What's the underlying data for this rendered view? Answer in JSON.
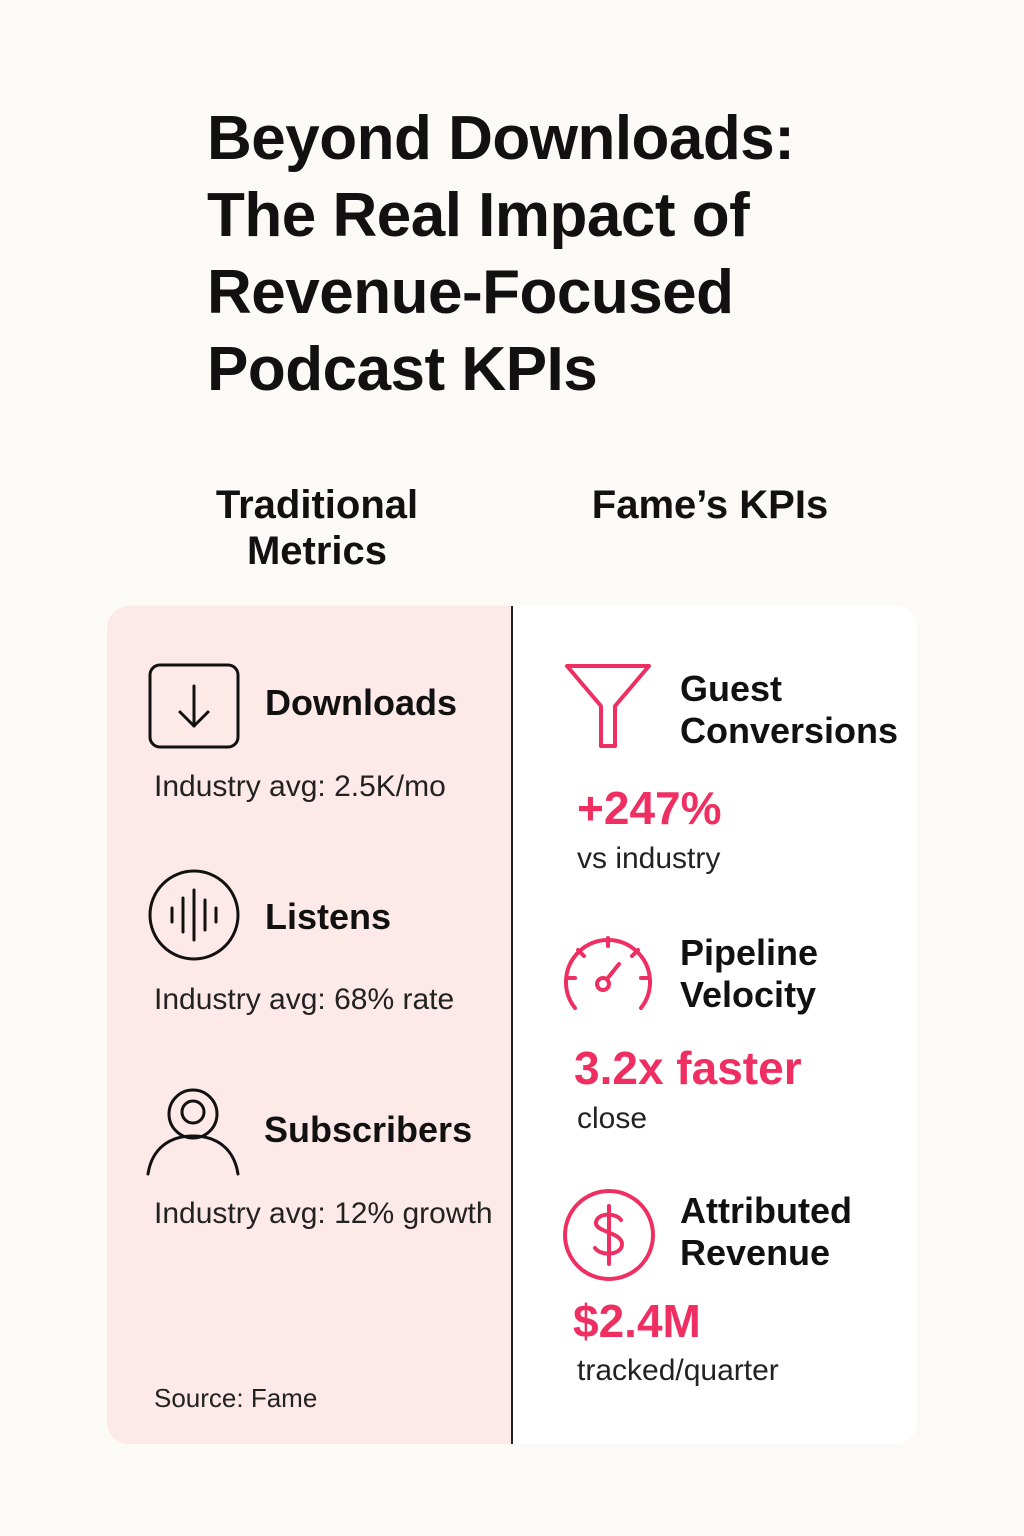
{
  "title_lines": [
    "Beyond Downloads:",
    "The Real Impact of",
    "Revenue-Focused",
    "Podcast KPIs"
  ],
  "columns": {
    "traditional": {
      "heading_lines": [
        "Traditional",
        "Metrics"
      ]
    },
    "fame": {
      "heading_lines": [
        "Fame’s KPIs"
      ]
    }
  },
  "traditional_metrics": [
    {
      "icon": "download-icon",
      "name": "Downloads",
      "detail": "Industry avg: 2.5K/mo"
    },
    {
      "icon": "audio-waveform-icon",
      "name": "Listens",
      "detail": "Industry avg: 68% rate"
    },
    {
      "icon": "user-icon",
      "name": "Subscribers",
      "detail": "Industry avg: 12% growth"
    }
  ],
  "fame_kpis": [
    {
      "icon": "funnel-icon",
      "name_lines": [
        "Guest",
        "Conversions"
      ],
      "value": "+247%",
      "caption": "vs industry"
    },
    {
      "icon": "speedometer-icon",
      "name_lines": [
        "Pipeline",
        "Velocity"
      ],
      "value": "3.2x faster",
      "caption": "close"
    },
    {
      "icon": "dollar-icon",
      "name_lines": [
        "Attributed",
        "Revenue"
      ],
      "value": "$2.4M",
      "caption": "tracked/quarter"
    }
  ],
  "source": "Source: Fame",
  "colors": {
    "background": "#fcfaf6",
    "left_panel": "#fde9e8",
    "right_panel": "#ffffff",
    "accent": "#ef2f62",
    "text": "#111111"
  }
}
